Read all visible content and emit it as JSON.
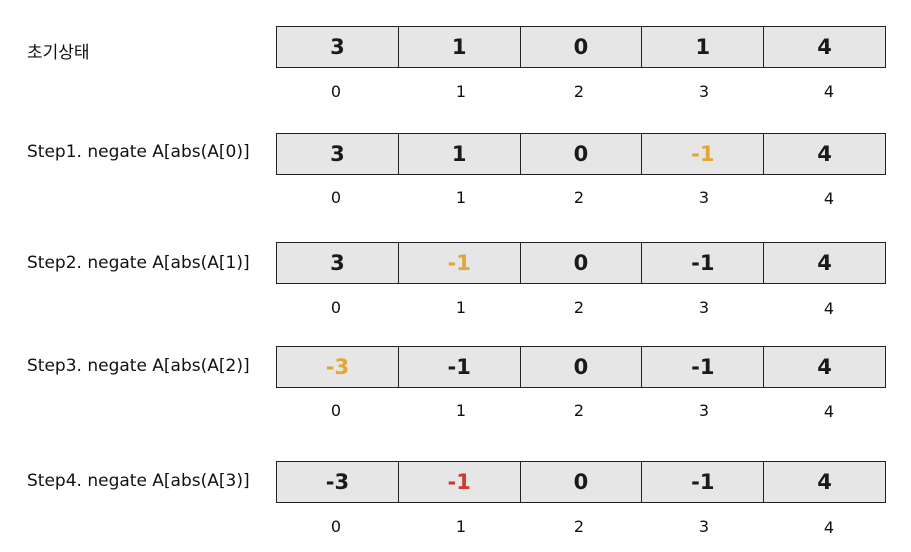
{
  "rows": [
    {
      "label": "초기상태",
      "cells": [
        {
          "value": "3",
          "color": "default"
        },
        {
          "value": "1",
          "color": "default"
        },
        {
          "value": "0",
          "color": "default"
        },
        {
          "value": "1",
          "color": "default"
        },
        {
          "value": "4",
          "color": "default"
        }
      ],
      "indices": [
        "0",
        "1",
        "2",
        "3",
        "4"
      ]
    },
    {
      "label": "Step1. negate A[abs(A[0)]",
      "cells": [
        {
          "value": "3",
          "color": "default"
        },
        {
          "value": "1",
          "color": "default"
        },
        {
          "value": "0",
          "color": "default"
        },
        {
          "value": "-1",
          "color": "orange"
        },
        {
          "value": "4",
          "color": "default"
        }
      ],
      "indices": [
        "0",
        "1",
        "2",
        "3",
        "4"
      ]
    },
    {
      "label": "Step2. negate A[abs(A[1)]",
      "cells": [
        {
          "value": "3",
          "color": "default"
        },
        {
          "value": "-1",
          "color": "orange"
        },
        {
          "value": "0",
          "color": "default"
        },
        {
          "value": "-1",
          "color": "default"
        },
        {
          "value": "4",
          "color": "default"
        }
      ],
      "indices": [
        "0",
        "1",
        "2",
        "3",
        "4"
      ]
    },
    {
      "label": "Step3. negate A[abs(A[2)]",
      "cells": [
        {
          "value": "-3",
          "color": "orange"
        },
        {
          "value": "-1",
          "color": "default"
        },
        {
          "value": "0",
          "color": "default"
        },
        {
          "value": "-1",
          "color": "default"
        },
        {
          "value": "4",
          "color": "default"
        }
      ],
      "indices": [
        "0",
        "1",
        "2",
        "3",
        "4"
      ]
    },
    {
      "label": "Step4. negate A[abs(A[3)]",
      "cells": [
        {
          "value": "-3",
          "color": "default"
        },
        {
          "value": "-1",
          "color": "red"
        },
        {
          "value": "0",
          "color": "default"
        },
        {
          "value": "-1",
          "color": "default"
        },
        {
          "value": "4",
          "color": "default"
        }
      ],
      "indices": [
        "0",
        "1",
        "2",
        "3",
        "4"
      ]
    }
  ],
  "colors": {
    "default": "#1a1a1a",
    "orange": "#e3a534",
    "red": "#cc3a2a",
    "cell_fill": "#e6e6e6"
  }
}
